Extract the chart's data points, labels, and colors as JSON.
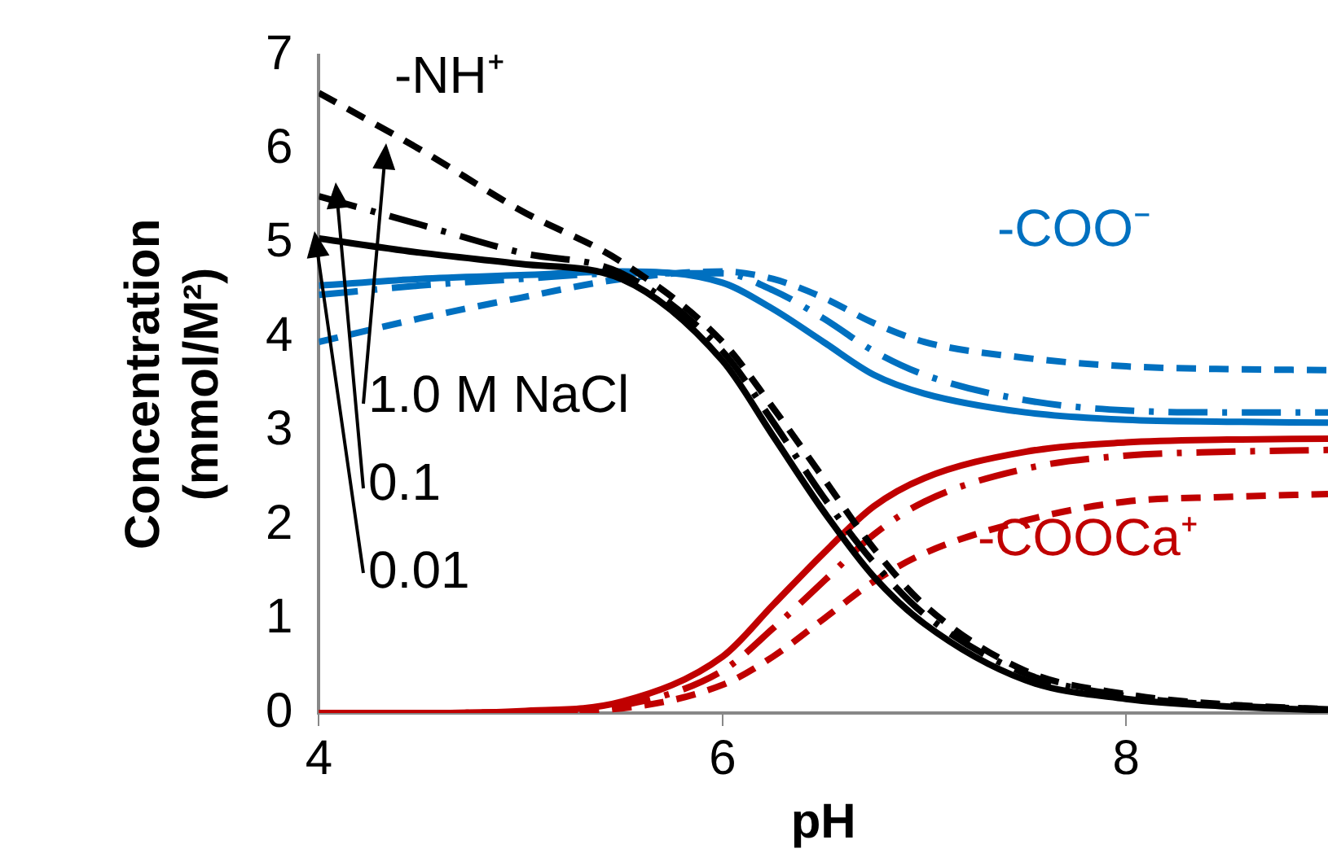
{
  "chart_data": {
    "type": "line",
    "xlabel": "pH",
    "ylabel": "Concentration (mmol/M²)",
    "xlim": [
      4,
      9
    ],
    "xticks": [
      4,
      6,
      8
    ],
    "ylim": [
      0,
      7
    ],
    "yticks": [
      0,
      1,
      2,
      3,
      4,
      5,
      6,
      7
    ],
    "legend": false,
    "marker": "none",
    "x": [
      4,
      4.5,
      5,
      5.5,
      6,
      6.25,
      6.5,
      6.75,
      7,
      7.5,
      8,
      8.5,
      9
    ],
    "series": [
      {
        "color": "#000000",
        "line_style": "solid",
        "values": [
          5.05,
          4.9,
          4.78,
          4.62,
          3.75,
          2.95,
          2.15,
          1.45,
          0.95,
          0.35,
          0.15,
          0.07,
          0.03
        ]
      },
      {
        "color": "#000000",
        "line_style": "dashdot",
        "values": [
          5.5,
          5.2,
          4.9,
          4.68,
          3.85,
          3.1,
          2.3,
          1.6,
          1.05,
          0.42,
          0.18,
          0.08,
          0.04
        ]
      },
      {
        "color": "#000000",
        "line_style": "dashed",
        "values": [
          6.6,
          6.0,
          5.35,
          4.8,
          3.95,
          3.25,
          2.5,
          1.75,
          1.15,
          0.45,
          0.2,
          0.09,
          0.04
        ]
      },
      {
        "color": "#0070c0",
        "line_style": "solid",
        "values": [
          4.55,
          4.62,
          4.66,
          4.7,
          4.58,
          4.3,
          3.95,
          3.6,
          3.4,
          3.2,
          3.12,
          3.1,
          3.09
        ]
      },
      {
        "color": "#0070c0",
        "line_style": "dashdot",
        "values": [
          4.45,
          4.55,
          4.62,
          4.68,
          4.68,
          4.5,
          4.2,
          3.85,
          3.6,
          3.33,
          3.22,
          3.2,
          3.2
        ]
      },
      {
        "color": "#0070c0",
        "line_style": "dashed",
        "values": [
          3.95,
          4.2,
          4.42,
          4.62,
          4.7,
          4.62,
          4.42,
          4.15,
          3.95,
          3.78,
          3.69,
          3.66,
          3.65
        ]
      },
      {
        "color": "#c00000",
        "line_style": "solid",
        "values": [
          0,
          0,
          0.02,
          0.12,
          0.6,
          1.15,
          1.7,
          2.2,
          2.5,
          2.78,
          2.88,
          2.91,
          2.92
        ]
      },
      {
        "color": "#c00000",
        "line_style": "dashdot",
        "values": [
          0,
          0,
          0.01,
          0.08,
          0.45,
          0.9,
          1.4,
          1.9,
          2.25,
          2.6,
          2.74,
          2.78,
          2.8
        ]
      },
      {
        "color": "#c00000",
        "line_style": "dashed",
        "values": [
          0,
          0,
          0.01,
          0.05,
          0.3,
          0.6,
          1.0,
          1.4,
          1.7,
          2.05,
          2.25,
          2.3,
          2.33
        ]
      }
    ],
    "annotations": [
      "-NH⁺",
      "-COO⁻",
      "-COOCa⁺",
      "1.0 M NaCl",
      "0.1",
      "0.01"
    ]
  }
}
